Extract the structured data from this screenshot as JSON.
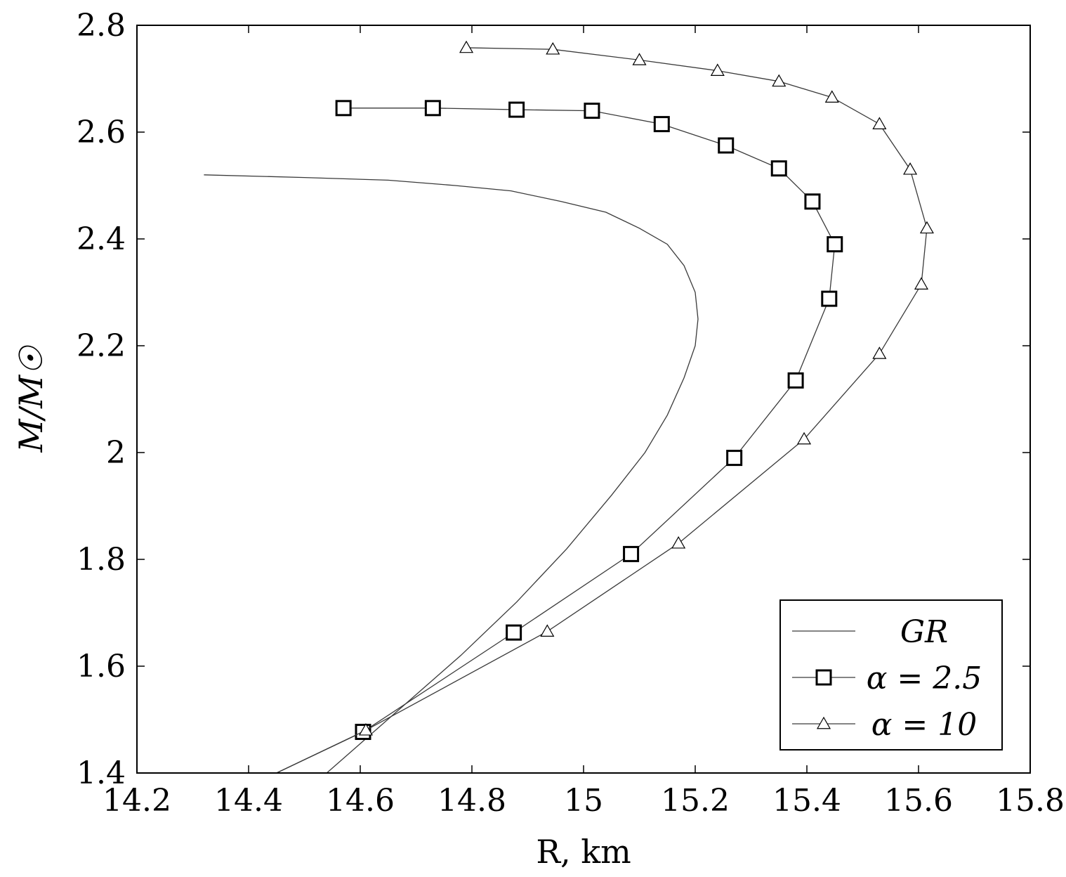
{
  "chart_data": {
    "type": "line",
    "xlabel": "R, km",
    "ylabel": "M/M☉",
    "xlim": [
      14.2,
      15.8
    ],
    "ylim": [
      1.4,
      2.8
    ],
    "xticks": [
      "14.2",
      "14.4",
      "14.6",
      "14.8",
      "15",
      "15.2",
      "15.4",
      "15.6",
      "15.8"
    ],
    "yticks": [
      "1.4",
      "1.6",
      "1.8",
      "2",
      "2.2",
      "2.4",
      "2.6",
      "2.8"
    ],
    "grid": false,
    "legend_position": "bottom-right",
    "series": [
      {
        "name": "GR",
        "marker": "none",
        "x": [
          14.54,
          14.66,
          14.78,
          14.88,
          14.97,
          15.05,
          15.11,
          15.15,
          15.18,
          15.2,
          15.205,
          15.2,
          15.18,
          15.15,
          15.1,
          15.04,
          14.96,
          14.87,
          14.77,
          14.65,
          14.5,
          14.32
        ],
        "y": [
          1.4,
          1.51,
          1.62,
          1.72,
          1.82,
          1.92,
          2.0,
          2.07,
          2.14,
          2.2,
          2.25,
          2.3,
          2.35,
          2.39,
          2.42,
          2.45,
          2.47,
          2.49,
          2.5,
          2.51,
          2.515,
          2.52
        ]
      },
      {
        "name": "α = 2.5",
        "marker": "square",
        "x": [
          14.45,
          14.605,
          14.875,
          15.085,
          15.27,
          15.38,
          15.44,
          15.45,
          15.41,
          15.35,
          15.255,
          15.14,
          15.015,
          14.88,
          14.73,
          14.57
        ],
        "y": [
          1.4,
          1.477,
          1.663,
          1.81,
          1.99,
          2.135,
          2.288,
          2.39,
          2.47,
          2.532,
          2.575,
          2.615,
          2.64,
          2.642,
          2.645,
          2.645
        ]
      },
      {
        "name": "α = 10",
        "marker": "triangle",
        "x": [
          14.45,
          14.61,
          14.935,
          15.17,
          15.395,
          15.53,
          15.605,
          15.615,
          15.585,
          15.53,
          15.445,
          15.35,
          15.24,
          15.1,
          14.945,
          14.79
        ],
        "y": [
          1.4,
          1.48,
          1.665,
          1.83,
          2.025,
          2.185,
          2.315,
          2.42,
          2.53,
          2.615,
          2.665,
          2.695,
          2.715,
          2.735,
          2.755,
          2.758
        ]
      }
    ]
  }
}
